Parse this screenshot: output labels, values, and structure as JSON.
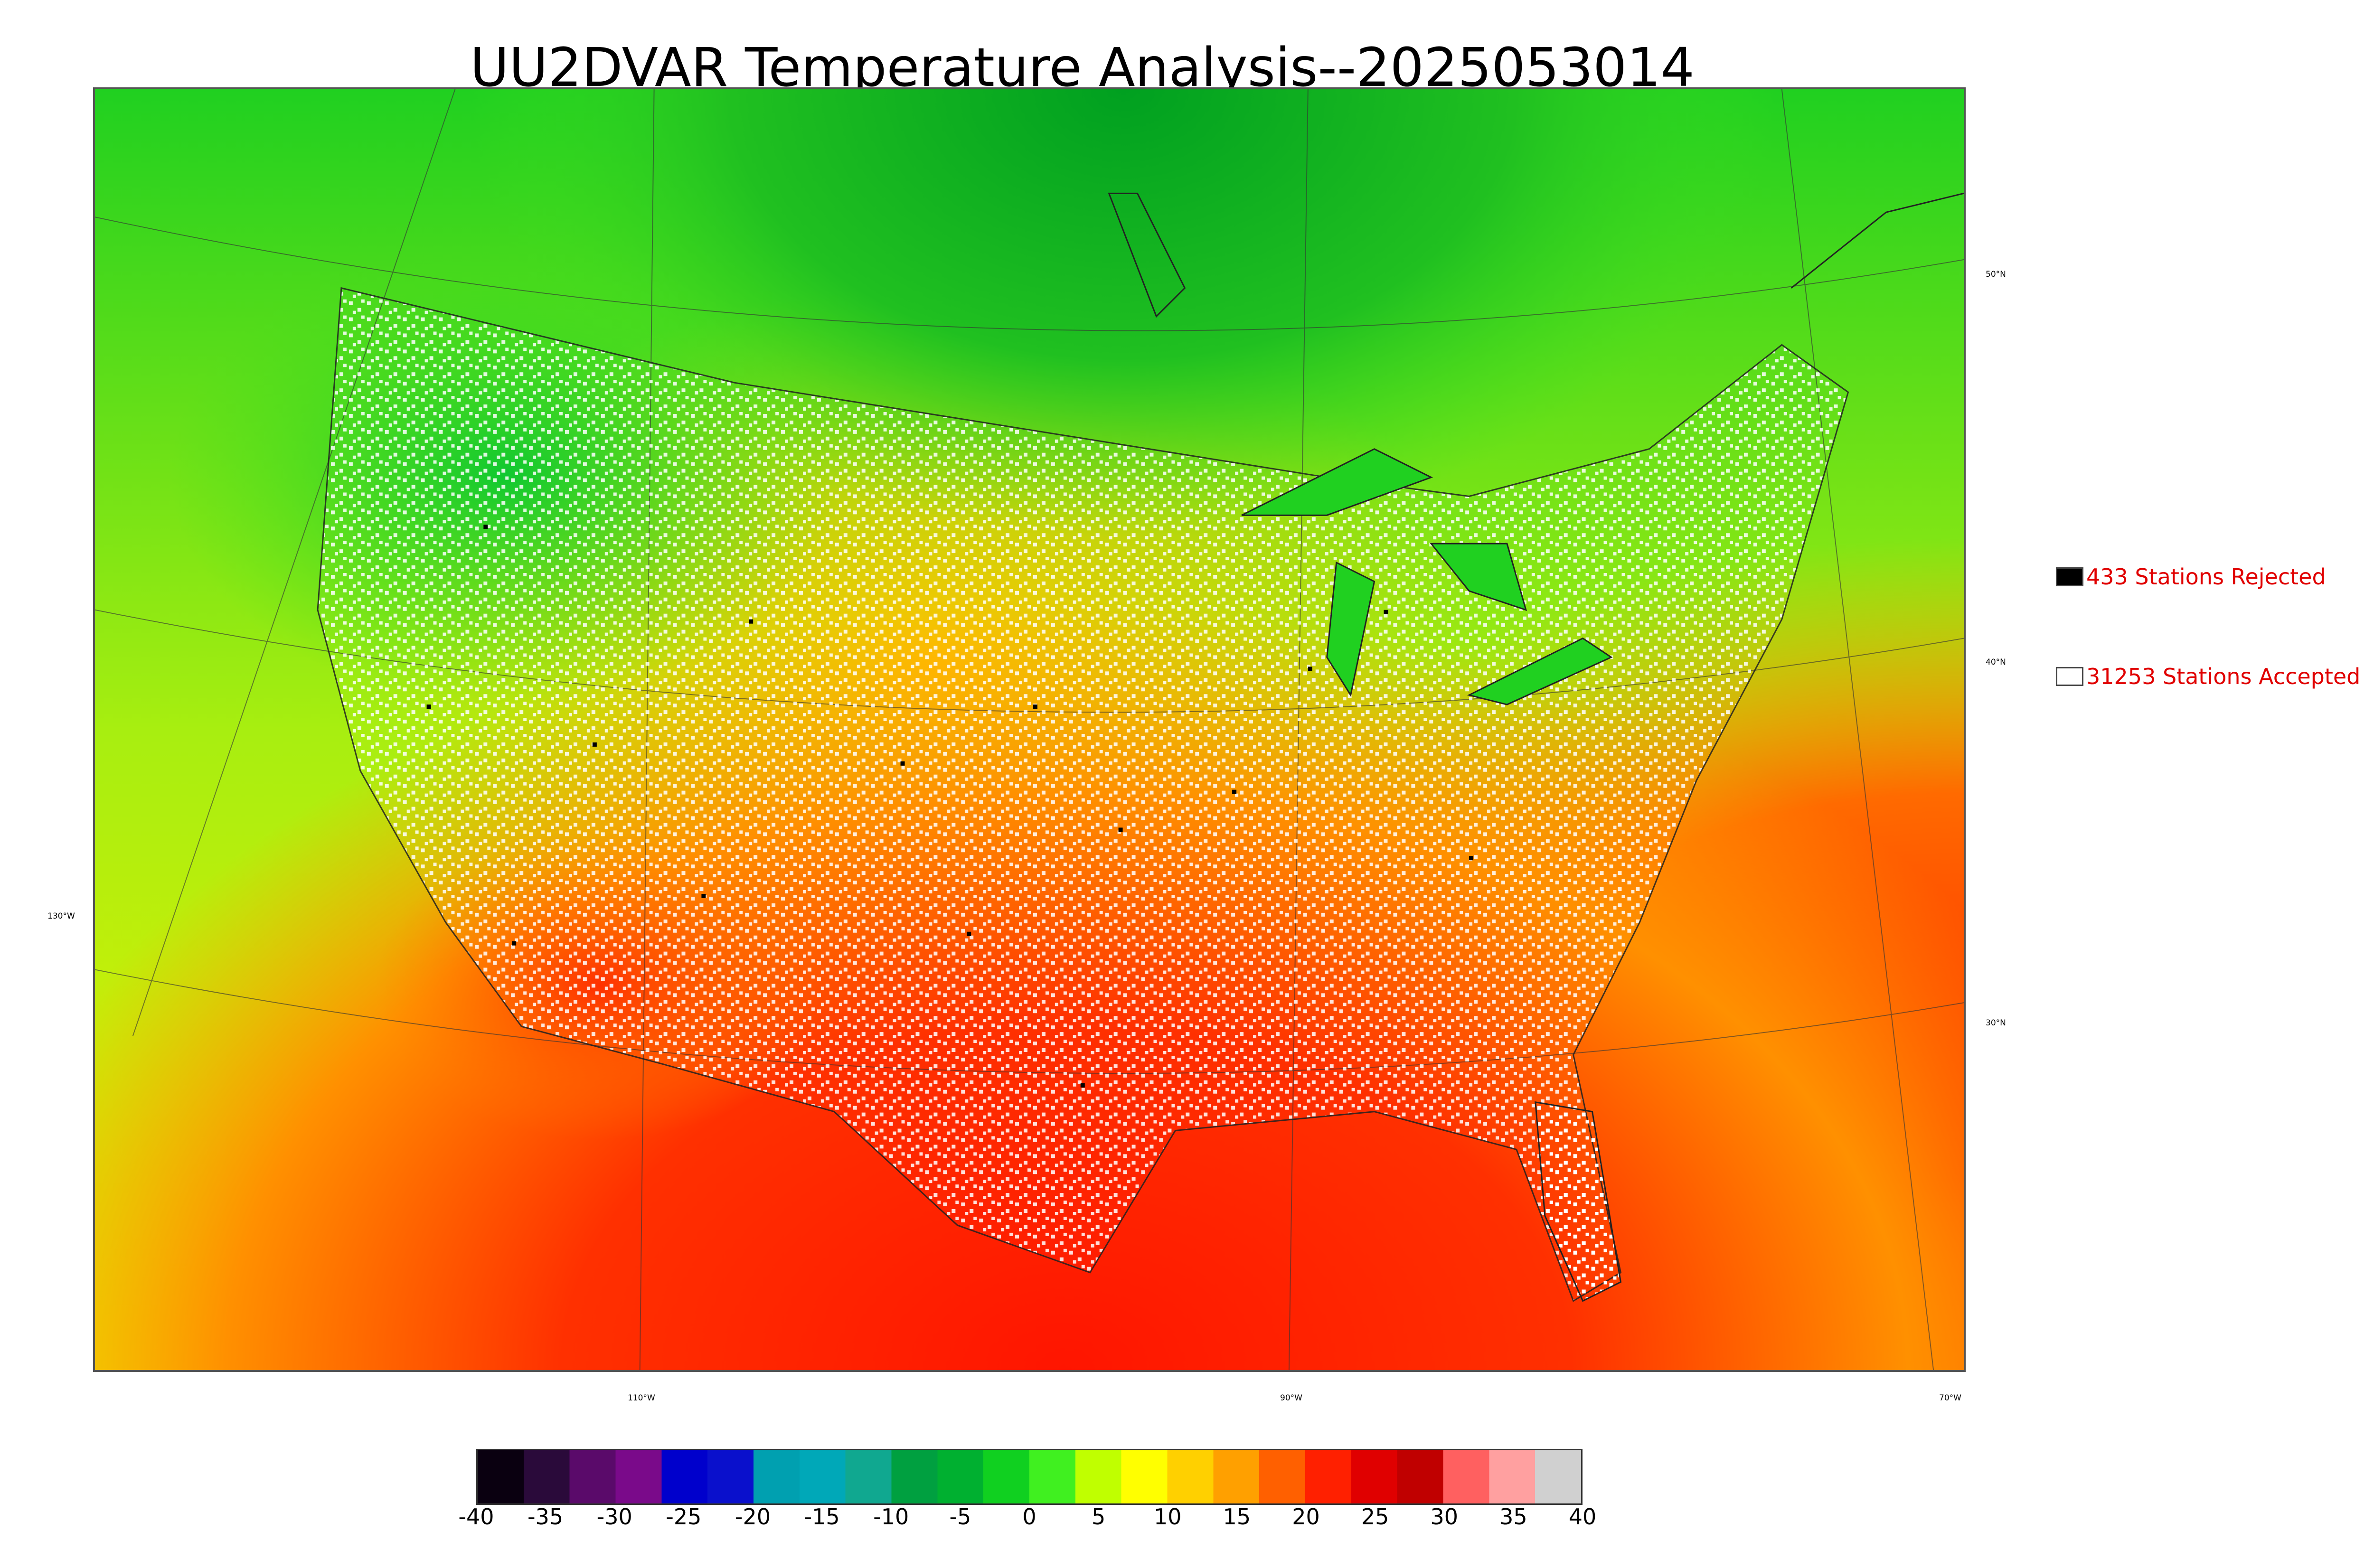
{
  "title": "UU2DVAR Temperature Analysis--2025053014",
  "legend": {
    "rejected": {
      "label": "433 Stations Rejected",
      "swatch_color": "#000000"
    },
    "accepted": {
      "label": "31253 Stations Accepted",
      "swatch_color": "#ffffff"
    }
  },
  "axis_labels": {
    "lon_110": "110°W",
    "lon_90": "90°W",
    "lon_70": "70°W",
    "lon_130": "130°W",
    "lat_50": "50°N",
    "lat_40": "40°N",
    "lat_30": "30°N"
  },
  "colorbar": {
    "min": -40,
    "max": 40,
    "ticks": [
      "-40",
      "-35",
      "-30",
      "-25",
      "-20",
      "-15",
      "-10",
      "-5",
      "0",
      "5",
      "10",
      "15",
      "20",
      "25",
      "30",
      "35",
      "40"
    ],
    "colors": [
      "#0a0010",
      "#2a0a3a",
      "#5a0a6a",
      "#7a0a8a",
      "#0000cc",
      "#0a10cc",
      "#00a0b0",
      "#00a8b8",
      "#10a890",
      "#00a040",
      "#00b030",
      "#10d020",
      "#40f020",
      "#c0ff00",
      "#ffff00",
      "#ffd000",
      "#ffa000",
      "#ff6000",
      "#ff2000",
      "#e00000",
      "#c00000",
      "#ff6060",
      "#ffa0a0",
      "#d0d0d0"
    ]
  }
}
